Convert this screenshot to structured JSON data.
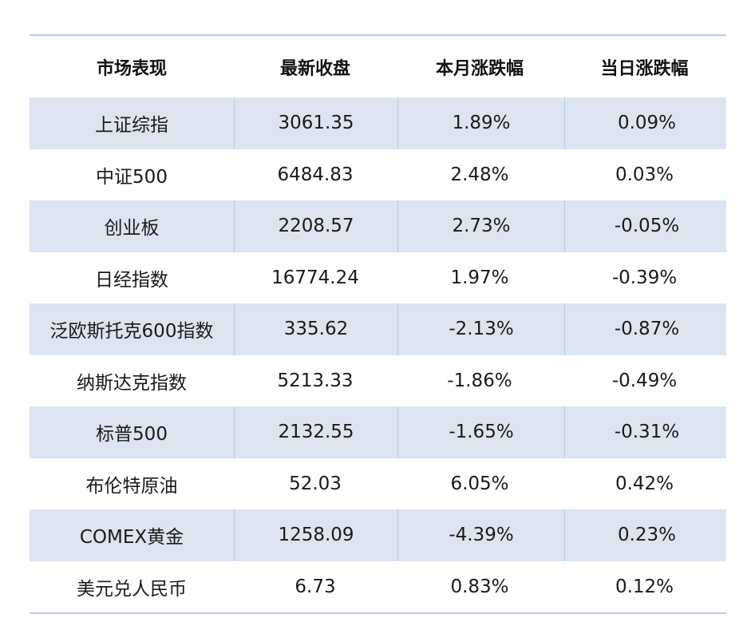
{
  "table": {
    "headers": [
      "市场表现",
      "最新收盘",
      "本月涨跌幅",
      "当日涨跌幅"
    ],
    "rows": [
      [
        "上证综指",
        "3061.35",
        "1.89%",
        "0.09%"
      ],
      [
        "中证500",
        "6484.83",
        "2.48%",
        "0.03%"
      ],
      [
        "创业板",
        "2208.57",
        "2.73%",
        "-0.05%"
      ],
      [
        "日经指数",
        "16774.24",
        "1.97%",
        "-0.39%"
      ],
      [
        "泛欧斯托克600指数",
        "335.62",
        "-2.13%",
        "-0.87%"
      ],
      [
        "纳斯达克指数",
        "5213.33",
        "-1.86%",
        "-0.49%"
      ],
      [
        "标普500",
        "2132.55",
        "-1.65%",
        "-0.31%"
      ],
      [
        "布伦特原油",
        "52.03",
        "6.05%",
        "0.42%"
      ],
      [
        "COMEX黄金",
        "1258.09",
        "-4.39%",
        "0.23%"
      ],
      [
        "美元兑人民币",
        "6.73",
        "0.83%",
        "0.12%"
      ]
    ]
  },
  "colors": {
    "shaded_row": "#dbe5f1",
    "rule": "#b9cde3",
    "divider": "#b8cade"
  }
}
